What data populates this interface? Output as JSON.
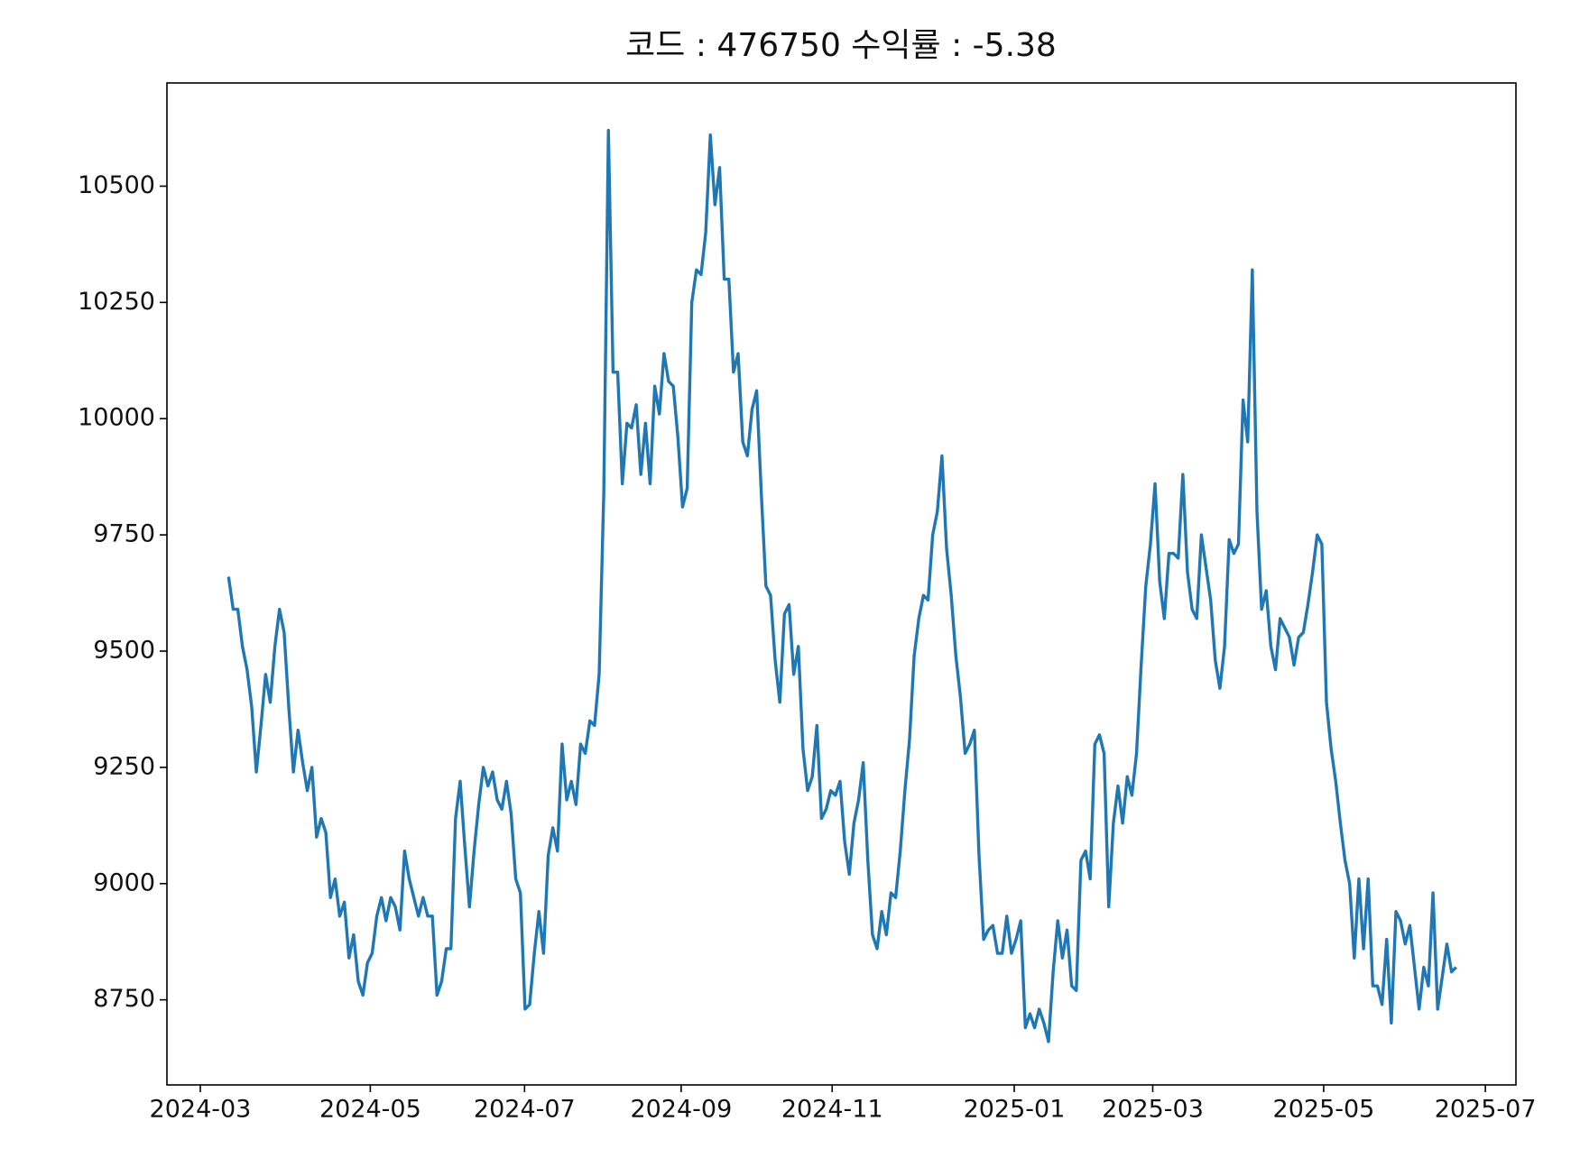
{
  "chart_data": {
    "type": "line",
    "title": "코드 : 476750 수익률 : -5.38",
    "series": [
      {
        "color": "#1f77b4",
        "values": [
          9660,
          9590,
          9590,
          9510,
          9460,
          9380,
          9240,
          9340,
          9450,
          9390,
          9510,
          9590,
          9540,
          9380,
          9240,
          9330,
          9260,
          9200,
          9250,
          9100,
          9140,
          9110,
          8970,
          9010,
          8930,
          8960,
          8840,
          8890,
          8790,
          8760,
          8830,
          8850,
          8930,
          8970,
          8920,
          8970,
          8950,
          8900,
          9070,
          9010,
          8970,
          8930,
          8970,
          8930,
          8930,
          8760,
          8790,
          8860,
          8860,
          9140,
          9220,
          9080,
          8950,
          9070,
          9170,
          9250,
          9210,
          9240,
          9180,
          9160,
          9220,
          9150,
          9010,
          8980,
          8730,
          8740,
          8850,
          8940,
          8850,
          9060,
          9120,
          9070,
          9300,
          9180,
          9220,
          9170,
          9300,
          9280,
          9350,
          9340,
          9450,
          9840,
          10620,
          10100,
          10100,
          9860,
          9990,
          9980,
          10030,
          9880,
          9990,
          9860,
          10070,
          10010,
          10140,
          10080,
          10070,
          9960,
          9810,
          9850,
          10250,
          10320,
          10310,
          10400,
          10610,
          10460,
          10540,
          10300,
          10300,
          10100,
          10140,
          9950,
          9920,
          10020,
          10060,
          9840,
          9640,
          9620,
          9480,
          9390,
          9580,
          9600,
          9450,
          9510,
          9290,
          9200,
          9230,
          9340,
          9140,
          9160,
          9200,
          9190,
          9220,
          9090,
          9020,
          9130,
          9180,
          9260,
          9050,
          8890,
          8860,
          8940,
          8890,
          8980,
          8970,
          9070,
          9200,
          9310,
          9490,
          9570,
          9620,
          9610,
          9750,
          9800,
          9920,
          9720,
          9620,
          9490,
          9400,
          9280,
          9300,
          9330,
          9060,
          8880,
          8900,
          8910,
          8850,
          8850,
          8930,
          8850,
          8880,
          8920,
          8690,
          8720,
          8690,
          8730,
          8700,
          8660,
          8810,
          8920,
          8840,
          8900,
          8780,
          8770,
          9050,
          9070,
          9010,
          9300,
          9320,
          9280,
          8950,
          9130,
          9210,
          9130,
          9230,
          9190,
          9280,
          9470,
          9640,
          9730,
          9860,
          9650,
          9570,
          9710,
          9710,
          9700,
          9880,
          9670,
          9590,
          9570,
          9750,
          9680,
          9610,
          9480,
          9420,
          9510,
          9740,
          9710,
          9730,
          10040,
          9950,
          10320,
          9800,
          9590,
          9630,
          9510,
          9460,
          9570,
          9550,
          9530,
          9470,
          9530,
          9540,
          9600,
          9670,
          9750,
          9730,
          9390,
          9290,
          9220,
          9130,
          9050,
          9000,
          8840,
          9010,
          8860,
          9010,
          8780,
          8780,
          8740,
          8880,
          8700,
          8940,
          8920,
          8870,
          8910,
          8820,
          8730,
          8820,
          8780,
          8980,
          8730,
          8800,
          8870,
          8810,
          8820
        ]
      }
    ],
    "xlim": [
      -13.3,
      277.9
    ],
    "xticks": [
      {
        "value": -6.1,
        "label": "2024-03"
      },
      {
        "value": 30.6,
        "label": "2024-05"
      },
      {
        "value": 63.9,
        "label": "2024-07"
      },
      {
        "value": 97.7,
        "label": "2024-09"
      },
      {
        "value": 130.3,
        "label": "2024-11"
      },
      {
        "value": 169.6,
        "label": "2025-01"
      },
      {
        "value": 199.5,
        "label": "2025-03"
      },
      {
        "value": 236.4,
        "label": "2025-05"
      },
      {
        "value": 271.3,
        "label": "2025-07"
      }
    ],
    "ylim": [
      8567,
      10722
    ],
    "yticks": [
      8750,
      9000,
      9250,
      9500,
      9750,
      10000,
      10250,
      10500
    ],
    "grid": false
  }
}
